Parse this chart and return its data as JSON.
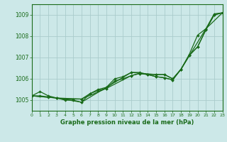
{
  "background_color": "#cce8e8",
  "grid_color": "#aacccc",
  "line_color": "#1a6b1a",
  "title": "Graphe pression niveau de la mer (hPa)",
  "xlim": [
    0,
    23
  ],
  "ylim": [
    1004.5,
    1009.5
  ],
  "yticks": [
    1005,
    1006,
    1007,
    1008,
    1009
  ],
  "xticks": [
    0,
    1,
    2,
    3,
    4,
    5,
    6,
    7,
    8,
    9,
    10,
    11,
    12,
    13,
    14,
    15,
    16,
    17,
    18,
    19,
    20,
    21,
    22,
    23
  ],
  "line1_x": [
    0,
    1,
    2,
    3,
    4,
    5,
    6,
    7,
    8,
    9,
    10,
    11,
    12,
    13,
    14,
    15,
    16,
    17,
    18,
    19,
    20,
    21,
    22,
    23
  ],
  "line1_y": [
    1005.2,
    1005.4,
    1005.2,
    1005.1,
    1005.0,
    1005.0,
    1004.9,
    1005.3,
    1005.5,
    1005.6,
    1006.0,
    1006.1,
    1006.3,
    1006.3,
    1006.2,
    1006.2,
    1006.2,
    1006.0,
    1006.45,
    1007.1,
    1007.5,
    1008.3,
    1009.0,
    1009.1
  ],
  "line2_x": [
    0,
    1,
    2,
    3,
    4,
    5,
    6,
    7,
    8,
    9,
    10,
    11,
    12,
    13,
    14,
    15,
    16,
    17,
    18,
    19,
    20,
    21,
    22,
    23
  ],
  "line2_y": [
    1005.2,
    1005.2,
    1005.15,
    1005.1,
    1005.05,
    1005.05,
    1005.05,
    1005.3,
    1005.45,
    1005.55,
    1005.9,
    1006.0,
    1006.15,
    1006.25,
    1006.2,
    1006.1,
    1006.05,
    1005.95,
    1006.45,
    1007.15,
    1008.05,
    1008.35,
    1009.05,
    1009.1
  ],
  "line3_x": [
    0,
    3,
    6,
    9,
    12,
    15,
    16,
    17,
    18,
    19,
    20,
    21,
    22,
    23
  ],
  "line3_y": [
    1005.2,
    1005.1,
    1004.9,
    1005.6,
    1006.3,
    1006.2,
    1006.2,
    1006.0,
    1006.45,
    1007.1,
    1007.5,
    1008.3,
    1009.0,
    1009.1
  ],
  "line4_x": [
    0,
    3,
    6,
    9,
    12,
    13,
    14,
    15,
    16,
    17,
    18,
    21,
    23
  ],
  "line4_y": [
    1005.2,
    1005.1,
    1005.05,
    1005.55,
    1006.15,
    1006.25,
    1006.2,
    1006.1,
    1006.05,
    1005.95,
    1006.45,
    1008.35,
    1009.1
  ]
}
